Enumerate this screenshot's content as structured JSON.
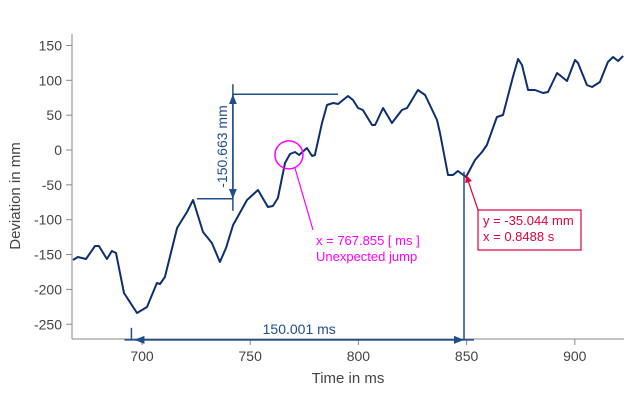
{
  "chart_data": {
    "type": "line",
    "title": "",
    "xlabel": "Time in ms",
    "ylabel": "Deviation in mm",
    "xlim": [
      667.6,
      923
    ],
    "ylim": [
      -265,
      165
    ],
    "xticks": [
      700,
      750,
      800,
      850,
      900
    ],
    "yticks": [
      150,
      100,
      50,
      0,
      -50,
      -100,
      -150,
      -200,
      -250
    ],
    "grid": false,
    "line_color": "#0d2f6e",
    "series": [
      {
        "name": "Deviation",
        "x": [
          668.1,
          670.4,
          674.1,
          678.3,
          680.1,
          683.8,
          686.1,
          688.0,
          691.7,
          697.7,
          702.3,
          706.9,
          708.3,
          710.6,
          716.2,
          718.5,
          720.8,
          723.6,
          728.2,
          732.3,
          736.0,
          738.8,
          742.1,
          748.5,
          753.6,
          758.2,
          760.5,
          762.8,
          766.1,
          768.4,
          770.7,
          772.6,
          776.2,
          778.6,
          779.9,
          783.2,
          785.5,
          788.3,
          790.6,
          795.2,
          797.5,
          799.8,
          802.1,
          806.3,
          807.7,
          811.4,
          815.5,
          820.1,
          822.5,
          827.5,
          830.8,
          836.3,
          837.7,
          841.4,
          843.7,
          846.0,
          849.7,
          853.9,
          857.1,
          859.4,
          864.0,
          866.8,
          871.4,
          873.8,
          875.6,
          878.4,
          881.6,
          885.3,
          887.6,
          891.8,
          896.4,
          900.1,
          901.5,
          905.6,
          908.0,
          911.6,
          915.3,
          917.7,
          920.0,
          922.3
        ],
        "y": [
          -157.8,
          -153.5,
          -156.4,
          -137.7,
          -137.7,
          -156.4,
          -144.9,
          -147.8,
          -205.2,
          -233.9,
          -225.3,
          -190.8,
          -192.3,
          -182.2,
          -111.9,
          -100.4,
          -89.0,
          -71.7,
          -117.6,
          -133.4,
          -160.7,
          -140.6,
          -107.6,
          -71.7,
          -57.4,
          -81.8,
          -80.3,
          -68.9,
          -18.7,
          -5.7,
          -2.9,
          -7.2,
          2.9,
          -8.6,
          -7.2,
          38.7,
          64.6,
          67.4,
          66.0,
          77.5,
          71.7,
          60.3,
          57.4,
          35.9,
          35.9,
          60.3,
          38.7,
          57.4,
          60.3,
          86.1,
          78.9,
          43.0,
          24.4,
          -35.9,
          -35.9,
          -30.1,
          -38.7,
          -14.3,
          -2.9,
          7.2,
          47.3,
          50.2,
          104.7,
          130.6,
          122.0,
          86.1,
          86.1,
          81.8,
          83.2,
          110.5,
          99.0,
          129.1,
          124.8,
          93.3,
          90.4,
          97.6,
          126.3,
          133.4,
          127.7,
          134.9
        ]
      }
    ],
    "annotations": {
      "vertical_dimension": {
        "text": "-150.663 mm",
        "x": 742,
        "y_from": -70,
        "y_to": 80,
        "color": "#1f4e8c"
      },
      "horizontal_dimension": {
        "text": "150.001 ms",
        "x_from": 696.5,
        "x_to": 848.8,
        "y": -258,
        "color": "#1f4e8c"
      },
      "circle_marker": {
        "x": 767.9,
        "y": -7,
        "lines": [
          "x = 767.855 [ ms ]",
          "Unexpected jump"
        ],
        "color": "#ff00ff"
      },
      "point_label": {
        "x": 848.8,
        "y": -31,
        "lines": [
          "y = -35.044 mm",
          "x = 0.8488 s"
        ],
        "color": "#e0003c"
      }
    }
  }
}
